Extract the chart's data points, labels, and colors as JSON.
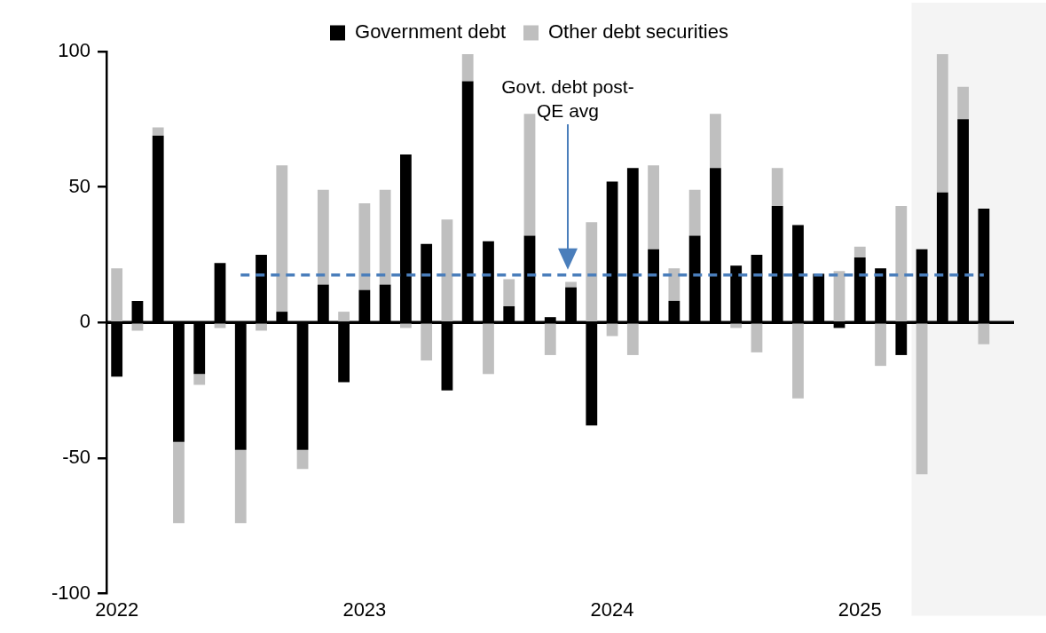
{
  "chart_data": {
    "type": "bar",
    "stacked": true,
    "x": [
      "2022-01",
      "2022-02",
      "2022-03",
      "2022-04",
      "2022-05",
      "2022-06",
      "2022-07",
      "2022-08",
      "2022-09",
      "2022-10",
      "2022-11",
      "2022-12",
      "2023-01",
      "2023-02",
      "2023-03",
      "2023-04",
      "2023-05",
      "2023-06",
      "2023-07",
      "2023-08",
      "2023-09",
      "2023-10",
      "2023-11",
      "2023-12",
      "2024-01",
      "2024-02",
      "2024-03",
      "2024-04",
      "2024-05",
      "2024-06",
      "2024-07",
      "2024-08",
      "2024-09",
      "2024-10",
      "2024-11",
      "2024-12",
      "2025-01",
      "2025-02",
      "2025-03",
      "2025-04",
      "2025-05",
      "2025-06",
      "2025-07"
    ],
    "series": [
      {
        "name": "Government debt",
        "color": "#000000",
        "values": [
          -20,
          8,
          69,
          -44,
          -19,
          22,
          -47,
          25,
          4,
          -47,
          14,
          -22,
          12,
          14,
          62,
          29,
          -25,
          89,
          30,
          6,
          32,
          2,
          13,
          -38,
          52,
          57,
          27,
          8,
          32,
          57,
          21,
          25,
          43,
          36,
          18,
          -2,
          24,
          20,
          -12,
          27,
          48,
          75,
          42
        ]
      },
      {
        "name": "Other debt securities",
        "color": "#bfbfbf",
        "values": [
          20,
          -3,
          3,
          -30,
          -4,
          -2,
          -27,
          -3,
          54,
          -7,
          35,
          4,
          32,
          35,
          -2,
          -14,
          38,
          10,
          -19,
          10,
          45,
          -12,
          2,
          37,
          -5,
          -12,
          31,
          12,
          17,
          20,
          -2,
          -11,
          14,
          -28,
          0,
          19,
          4,
          -16,
          43,
          -56,
          51,
          12,
          -8
        ]
      },
      {
        "type": "line",
        "x": [
          "2022-07",
          "2025-07"
        ],
        "values": [
          17.5,
          17.5
        ],
        "color": "#4a7ebb",
        "line_style": "dashed"
      }
    ],
    "xlim": [
      "2021-12-16",
      "2025-08-15"
    ],
    "xticks": [
      "2022",
      "2023",
      "2024",
      "2025"
    ],
    "ylim": [
      -100,
      100
    ],
    "yticks": [
      -100,
      -50,
      0,
      50,
      100
    ],
    "bands": [
      {
        "axis": "x",
        "from": "2025-03-16",
        "to": "2025-08-15",
        "color": "#f4f4f4"
      }
    ],
    "annotations": [
      "Govt. debt post-QE avg"
    ],
    "grid": false,
    "legend": "top"
  }
}
